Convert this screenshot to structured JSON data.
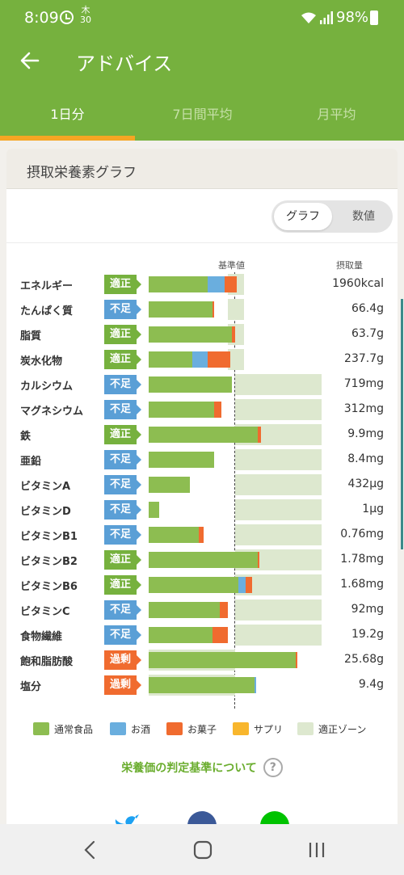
{
  "status": {
    "time": "8:09",
    "calendar_top": "木",
    "calendar_day": "30",
    "battery": "98%"
  },
  "appbar": {
    "title": "アドバイス"
  },
  "tabs": [
    "1日分",
    "7日間平均",
    "月平均"
  ],
  "card": {
    "title": "摂取栄養素グラフ",
    "toggle": {
      "graph": "グラフ",
      "numeric": "数値",
      "selected": "グラフ"
    },
    "col_standard": "基準値",
    "col_intake": "摂取量"
  },
  "colors": {
    "food": "#8dbd51",
    "alcohol": "#6aaede",
    "snacks": "#f06b2f",
    "supplement": "#f8b62d",
    "zone": "#dde8cf"
  },
  "chart_data": {
    "type": "bar",
    "rows": [
      {
        "name": "エネルギー",
        "status": "適正",
        "status_kind": "ok",
        "value": "1960kcal",
        "food_pct": 34,
        "alcohol_pct": 10,
        "snack_pct": 7,
        "zone": [
          46,
          55
        ]
      },
      {
        "name": "たんぱく質",
        "status": "不足",
        "status_kind": "low",
        "value": "66.4g",
        "food_pct": 37,
        "alcohol_pct": 0,
        "snack_pct": 1,
        "zone": [
          46,
          55
        ]
      },
      {
        "name": "脂質",
        "status": "適正",
        "status_kind": "ok",
        "value": "63.7g",
        "food_pct": 48,
        "alcohol_pct": 0,
        "snack_pct": 2,
        "zone": [
          46,
          55
        ]
      },
      {
        "name": "炭水化物",
        "status": "適正",
        "status_kind": "ok",
        "value": "237.7g",
        "food_pct": 25,
        "alcohol_pct": 9,
        "snack_pct": 13,
        "zone": [
          46,
          55
        ]
      },
      {
        "name": "カルシウム",
        "status": "不足",
        "status_kind": "low",
        "value": "719mg",
        "food_pct": 48,
        "alcohol_pct": 0,
        "snack_pct": 0,
        "zone": [
          50,
          100
        ]
      },
      {
        "name": "マグネシウム",
        "status": "不足",
        "status_kind": "low",
        "value": "312mg",
        "food_pct": 38,
        "alcohol_pct": 0,
        "snack_pct": 4,
        "zone": [
          50,
          100
        ]
      },
      {
        "name": "鉄",
        "status": "適正",
        "status_kind": "ok",
        "value": "9.9mg",
        "food_pct": 63,
        "alcohol_pct": 0,
        "snack_pct": 2,
        "zone": [
          50,
          100
        ]
      },
      {
        "name": "亜鉛",
        "status": "不足",
        "status_kind": "low",
        "value": "8.4mg",
        "food_pct": 38,
        "alcohol_pct": 0,
        "snack_pct": 0,
        "zone": [
          50,
          100
        ]
      },
      {
        "name": "ビタミンA",
        "status": "不足",
        "status_kind": "low",
        "value": "432µg",
        "food_pct": 24,
        "alcohol_pct": 0,
        "snack_pct": 0,
        "zone": [
          50,
          100
        ]
      },
      {
        "name": "ビタミンD",
        "status": "不足",
        "status_kind": "low",
        "value": "1µg",
        "food_pct": 6,
        "alcohol_pct": 0,
        "snack_pct": 0,
        "zone": [
          50,
          100
        ]
      },
      {
        "name": "ビタミンB1",
        "status": "不足",
        "status_kind": "low",
        "value": "0.76mg",
        "food_pct": 29,
        "alcohol_pct": 0,
        "snack_pct": 3,
        "zone": [
          50,
          100
        ]
      },
      {
        "name": "ビタミンB2",
        "status": "適正",
        "status_kind": "ok",
        "value": "1.78mg",
        "food_pct": 63,
        "alcohol_pct": 0,
        "snack_pct": 1,
        "zone": [
          50,
          100
        ]
      },
      {
        "name": "ビタミンB6",
        "status": "適正",
        "status_kind": "ok",
        "value": "1.68mg",
        "food_pct": 52,
        "alcohol_pct": 4,
        "snack_pct": 4,
        "zone": [
          50,
          100
        ]
      },
      {
        "name": "ビタミンC",
        "status": "不足",
        "status_kind": "low",
        "value": "92mg",
        "food_pct": 41,
        "alcohol_pct": 0,
        "snack_pct": 5,
        "zone": [
          50,
          100
        ]
      },
      {
        "name": "食物繊維",
        "status": "不足",
        "status_kind": "low",
        "value": "19.2g",
        "food_pct": 37,
        "alcohol_pct": 0,
        "snack_pct": 9,
        "zone": [
          50,
          100
        ]
      },
      {
        "name": "飽和脂肪酸",
        "status": "過剰",
        "status_kind": "over",
        "value": "25.68g",
        "food_pct": 85,
        "alcohol_pct": 0,
        "snack_pct": 1,
        "zone": [
          0,
          50
        ]
      },
      {
        "name": "塩分",
        "status": "過剰",
        "status_kind": "over",
        "value": "9.4g",
        "food_pct": 61,
        "alcohol_pct": 1,
        "snack_pct": 0,
        "zone": [
          0,
          50
        ]
      }
    ]
  },
  "legend": [
    {
      "label": "通常食品",
      "color": "#8dbd51"
    },
    {
      "label": "お酒",
      "color": "#6aaede"
    },
    {
      "label": "お菓子",
      "color": "#f06b2f"
    },
    {
      "label": "サプリ",
      "color": "#f8b62d"
    },
    {
      "label": "適正ゾーン",
      "color": "#dde8cf"
    }
  ],
  "criteria_link": "栄養価の判定基準について",
  "criteria_help": "?"
}
